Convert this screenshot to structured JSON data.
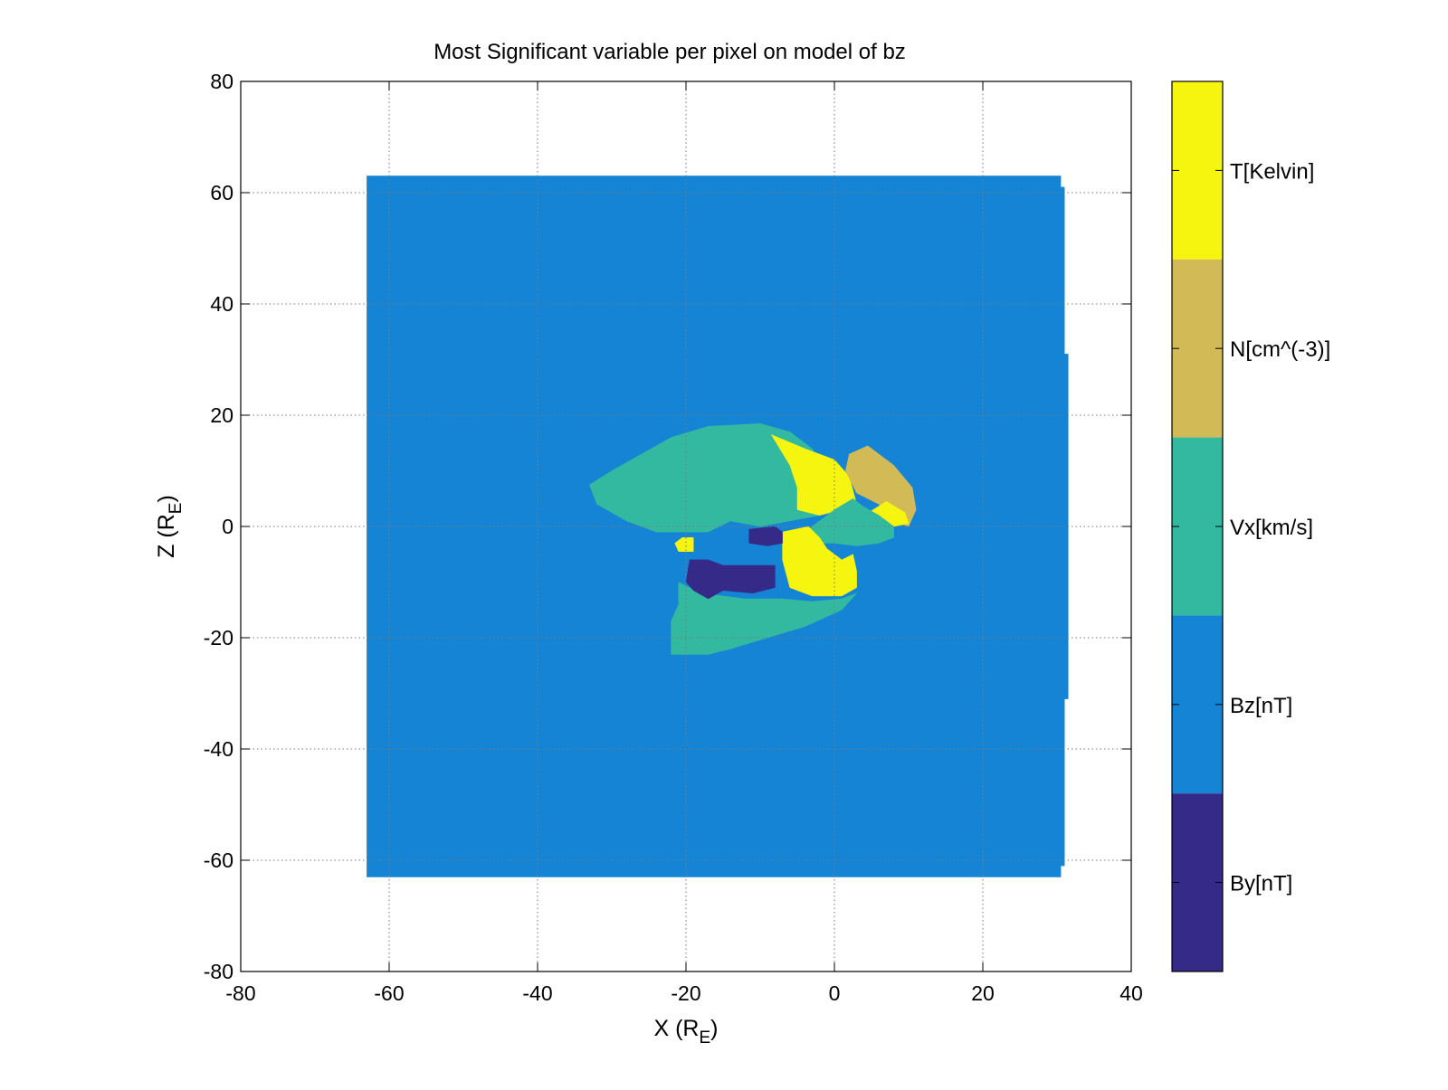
{
  "chart_data": {
    "type": "heatmap",
    "title": "Most Significant variable per pixel on model of bz",
    "xlabel": {
      "main": "X (R",
      "sub": "E",
      "close": ")"
    },
    "ylabel": {
      "main": "Z (R",
      "sub": "E",
      "close": ")"
    },
    "xlim": [
      -80,
      40
    ],
    "ylim": [
      -80,
      80
    ],
    "xticks": [
      -80,
      -60,
      -40,
      -20,
      0,
      20,
      40
    ],
    "yticks": [
      80,
      60,
      40,
      20,
      0,
      -20,
      -40,
      -60,
      -80
    ],
    "grid": true,
    "colorbar": {
      "labels": [
        "T[Kelvin]",
        "N[cm^(-3)]",
        "Vx[km/s]",
        "Bz[nT]",
        "By[nT]"
      ],
      "colors": [
        "#f5f50f",
        "#d2bb56",
        "#33b99f",
        "#1584d5",
        "#352a87"
      ]
    },
    "background_variable": "Bz[nT]",
    "regions": [
      {
        "variable": "Bz[nT]",
        "color": "#1584d5",
        "points": [
          [
            -63,
            63
          ],
          [
            30.5,
            63
          ],
          [
            30.5,
            61
          ],
          [
            31,
            61
          ],
          [
            31,
            31
          ],
          [
            31.5,
            31
          ],
          [
            31.5,
            -31
          ],
          [
            31,
            -31
          ],
          [
            31,
            -61
          ],
          [
            30.5,
            -61
          ],
          [
            30.5,
            -63
          ],
          [
            -63,
            -63
          ]
        ]
      },
      {
        "variable": "Vx[km/s]",
        "color": "#33b99f",
        "points": [
          [
            -33,
            7.5
          ],
          [
            -30,
            10
          ],
          [
            -26,
            13
          ],
          [
            -22,
            16
          ],
          [
            -17,
            18
          ],
          [
            -10,
            18.5
          ],
          [
            -6,
            17
          ],
          [
            -3,
            14
          ],
          [
            -1,
            9
          ],
          [
            0,
            5
          ],
          [
            -2,
            2
          ],
          [
            -6,
            1
          ],
          [
            -10,
            0
          ],
          [
            -14,
            1
          ],
          [
            -17,
            -1
          ],
          [
            -20,
            -1
          ],
          [
            -24,
            -1
          ],
          [
            -28,
            1
          ],
          [
            -32,
            4
          ]
        ]
      },
      {
        "variable": "T[Kelvin]",
        "color": "#f5f50f",
        "points": [
          [
            -8.5,
            16.5
          ],
          [
            -4,
            14
          ],
          [
            0,
            12
          ],
          [
            2,
            9
          ],
          [
            3,
            4
          ],
          [
            1,
            3
          ],
          [
            -2,
            2
          ],
          [
            -5,
            3
          ],
          [
            -5,
            7
          ],
          [
            -6,
            11
          ]
        ]
      },
      {
        "variable": "N[cm^(-3)]",
        "color": "#d2bb56",
        "points": [
          [
            2,
            13
          ],
          [
            4.5,
            14.5
          ],
          [
            8,
            11
          ],
          [
            10.5,
            7
          ],
          [
            11,
            3
          ],
          [
            10,
            0
          ],
          [
            8,
            1
          ],
          [
            6,
            4
          ],
          [
            3,
            6
          ],
          [
            1.5,
            10
          ]
        ]
      },
      {
        "variable": "T[Kelvin]",
        "color": "#f5f50f",
        "points": [
          [
            4,
            2
          ],
          [
            7,
            4.5
          ],
          [
            9.5,
            2.5
          ],
          [
            10,
            0.5
          ],
          [
            8,
            0
          ],
          [
            6,
            1
          ]
        ]
      },
      {
        "variable": "Vx[km/s]",
        "color": "#33b99f",
        "points": [
          [
            -4,
            -1
          ],
          [
            -2,
            1
          ],
          [
            0,
            3
          ],
          [
            2.5,
            5
          ],
          [
            4,
            3.5
          ],
          [
            6,
            2
          ],
          [
            8,
            0
          ],
          [
            8,
            -2
          ],
          [
            6,
            -3
          ],
          [
            3,
            -3.5
          ],
          [
            0,
            -3
          ],
          [
            -3,
            -3
          ]
        ]
      },
      {
        "variable": "T[Kelvin]",
        "color": "#f5f50f",
        "points": [
          [
            -7,
            -1
          ],
          [
            -3.5,
            0
          ],
          [
            -2,
            -2
          ],
          [
            -1,
            -4
          ],
          [
            1,
            -6
          ],
          [
            2.5,
            -5
          ],
          [
            3,
            -8
          ],
          [
            3,
            -11
          ],
          [
            1,
            -12.5
          ],
          [
            -3,
            -12.5
          ],
          [
            -6,
            -11
          ],
          [
            -7,
            -6
          ]
        ]
      },
      {
        "variable": "Vx[km/s]",
        "color": "#33b99f",
        "points": [
          [
            -21,
            -10
          ],
          [
            -18,
            -12
          ],
          [
            -12,
            -13
          ],
          [
            -7,
            -13
          ],
          [
            -3,
            -13.5
          ],
          [
            1,
            -13
          ],
          [
            3,
            -12
          ],
          [
            1,
            -15
          ],
          [
            -4,
            -18
          ],
          [
            -9,
            -20
          ],
          [
            -14,
            -22
          ],
          [
            -17,
            -23
          ],
          [
            -22,
            -23
          ],
          [
            -22,
            -17
          ],
          [
            -21,
            -14
          ]
        ]
      },
      {
        "variable": "By[nT]",
        "color": "#352a87",
        "points": [
          [
            -19.5,
            -6
          ],
          [
            -17,
            -6
          ],
          [
            -15,
            -7
          ],
          [
            -11,
            -7
          ],
          [
            -8,
            -7
          ],
          [
            -8,
            -11
          ],
          [
            -11,
            -12
          ],
          [
            -15,
            -11.5
          ],
          [
            -17,
            -13
          ],
          [
            -19,
            -11.5
          ],
          [
            -20,
            -10
          ]
        ]
      },
      {
        "variable": "By[nT]",
        "color": "#352a87",
        "points": [
          [
            -11.5,
            -0.5
          ],
          [
            -8,
            0
          ],
          [
            -7,
            -1
          ],
          [
            -7,
            -3
          ],
          [
            -9,
            -3.5
          ],
          [
            -11.5,
            -3
          ]
        ]
      },
      {
        "variable": "T[Kelvin]",
        "color": "#f5f50f",
        "points": [
          [
            -20.5,
            -2
          ],
          [
            -19,
            -2
          ],
          [
            -19,
            -4.5
          ],
          [
            -21,
            -4.5
          ],
          [
            -21.5,
            -3
          ]
        ]
      }
    ]
  }
}
